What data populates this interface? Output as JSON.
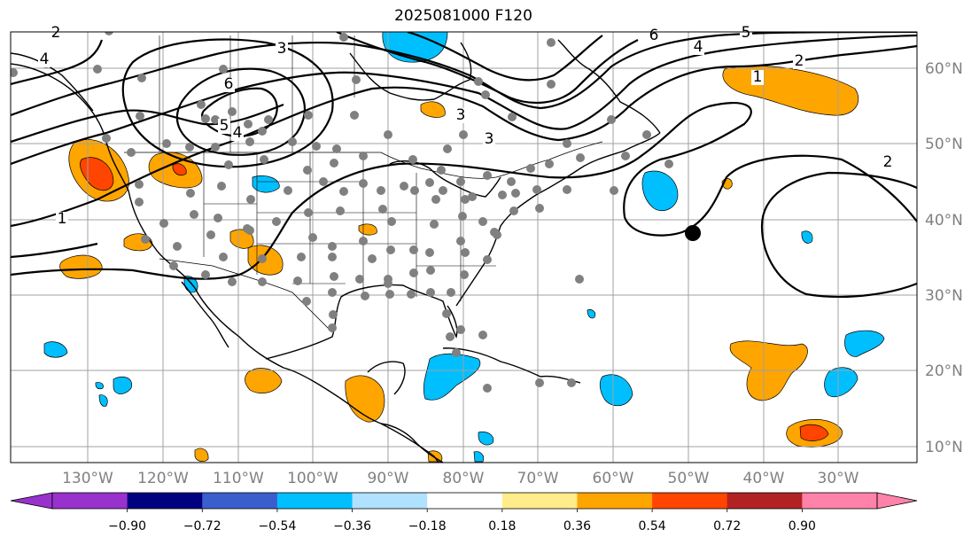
{
  "title": "2025081000 F120",
  "colors": {
    "grid": "#a0a0a0",
    "coast": "#000000",
    "station": "#808080",
    "orange": "#ffa500",
    "red": "#ff4500",
    "cyan": "#00bfff",
    "contour": "#000000"
  },
  "lon_labels": [
    "130°W",
    "120°W",
    "110°W",
    "100°W",
    "90°W",
    "80°W",
    "70°W",
    "60°W",
    "50°W",
    "40°W",
    "30°W"
  ],
  "lat_labels": [
    "60°N",
    "50°N",
    "40°N",
    "30°N",
    "20°N",
    "10°N"
  ],
  "contour_labels": [
    "2",
    "4",
    "3",
    "6",
    "5",
    "4",
    "3",
    "3",
    "6",
    "4",
    "5",
    "2",
    "1",
    "1",
    "2"
  ],
  "colorbar": {
    "colors": [
      "#9932cc",
      "#000080",
      "#3a5fcd",
      "#00bfff",
      "#b0e2ff",
      "#ffffff",
      "#ffec8b",
      "#ffa500",
      "#ff4500",
      "#b22222",
      "#ff82ab"
    ],
    "extend_min_color": "#9932cc",
    "extend_max_color": "#ff82ab",
    "tick_labels": [
      "−0.90",
      "−0.72",
      "−0.54",
      "−0.36",
      "−0.18",
      "0.18",
      "0.36",
      "0.54",
      "0.72",
      "0.90"
    ]
  },
  "markers": {
    "big_dot": "black-circle-icon"
  }
}
